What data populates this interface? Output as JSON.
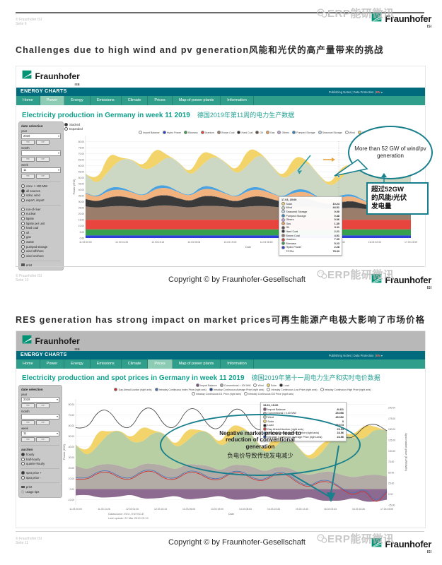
{
  "page": {
    "watermark": "ERP能研微讯",
    "logo_name": "Fraunhofer",
    "logo_isi": "ISI",
    "logo_ise": "ISE",
    "copyright": "Copyright © by Fraunhofer-Gesellschaft",
    "meta_owner": "© Fraunhofer ISI",
    "pages": [
      "Seite 9",
      "Seite 10",
      "Seite 11"
    ]
  },
  "slide1": {
    "title_en": "Challenges due to high wind and pv generation",
    "title_zh": "风能和光伏的高产量带来的挑战",
    "callout_bubble": "More than 52 GW of wind/pv generation",
    "callout_box": [
      "超过52GW",
      "的风能/光伏",
      "发电量"
    ]
  },
  "slide2": {
    "title_en": "RES generation has strong impact on market prices",
    "title_zh": "可再生能源产电极大影响了市场价格",
    "callout_en": [
      "Negative market prices lead to",
      "reduction of conventional",
      "generation"
    ],
    "callout_zh": "负电价导致传统发电减少"
  },
  "app": {
    "brand": "ENERGY CHARTS",
    "links": "Publishing Notes | Data Protection |",
    "lang": "EN",
    "caret": "▾",
    "nav1": [
      {
        "label": "Home",
        "cls": ""
      },
      {
        "label": "Power",
        "cls": "active"
      },
      {
        "label": "Energy",
        "cls": ""
      },
      {
        "label": "Emissions",
        "cls": ""
      },
      {
        "label": "Climate",
        "cls": ""
      },
      {
        "label": "Prices",
        "cls": ""
      },
      {
        "label": "Map of power plants",
        "cls": ""
      },
      {
        "label": "Information",
        "cls": ""
      }
    ],
    "nav2": [
      {
        "label": "Home",
        "cls": ""
      },
      {
        "label": "Power",
        "cls": ""
      },
      {
        "label": "Energy",
        "cls": ""
      },
      {
        "label": "Emissions",
        "cls": ""
      },
      {
        "label": "Climate",
        "cls": ""
      },
      {
        "label": "Prices",
        "cls": "active"
      },
      {
        "label": "Map of power plants",
        "cls": ""
      },
      {
        "label": "Information",
        "cls": ""
      }
    ],
    "heading1_en": "Electricity production in Germany in week 11 2019",
    "heading1_zh": "德国2019年第11周的电力生产数据",
    "heading2_en": "Electricity production and spot prices in Germany in week 11 2019",
    "heading2_zh": "德国2019年第十一周电力生产和实时电价数据",
    "stacked": "Stacked",
    "expanded": "Expanded",
    "sidebar1": {
      "title": "date selection",
      "year_label": "year",
      "year": "2019",
      "month_label": "month",
      "month": "",
      "week_label": "week",
      "week": "11",
      "prev": "<<",
      "next": ">>",
      "modes": [
        {
          "label": "conv. > 100 MW",
          "cls": ""
        },
        {
          "label": "all sources",
          "cls": "on"
        },
        {
          "label": "solar, wind",
          "cls": ""
        },
        {
          "label": "export, import",
          "cls": ""
        }
      ],
      "sources": [
        {
          "label": "run-of-river",
          "cls": ""
        },
        {
          "label": "nuclear",
          "cls": ""
        },
        {
          "label": "lignite",
          "cls": ""
        },
        {
          "label": "lignite per unit",
          "cls": ""
        },
        {
          "label": "hard coal",
          "cls": ""
        },
        {
          "label": "oil",
          "cls": ""
        },
        {
          "label": "gas",
          "cls": ""
        },
        {
          "label": "waste",
          "cls": ""
        },
        {
          "label": "pumped storage",
          "cls": ""
        },
        {
          "label": "wind offshore",
          "cls": ""
        },
        {
          "label": "wind onshore",
          "cls": ""
        }
      ],
      "print": "print"
    },
    "sidebar2": {
      "title": "date selection",
      "year_label": "year",
      "year": "2019",
      "month_label": "month",
      "month": "",
      "week_label": "week",
      "week": "11",
      "prev": "<<",
      "next": ">>",
      "auction_label": "auction",
      "auction": [
        {
          "label": "hourly",
          "cls": "on"
        },
        {
          "label": "half-hourly",
          "cls": ""
        },
        {
          "label": "quarter-hourly",
          "cls": ""
        }
      ],
      "spot": [
        {
          "label": "spot price +",
          "cls": "on"
        },
        {
          "label": "spot price -",
          "cls": ""
        }
      ],
      "print": "print",
      "tips": "usage tips"
    },
    "tooltip1": {
      "time": "17.03, 15:00",
      "rows": [
        {
          "label": "Solar",
          "value": "10.24",
          "color": "#f3d46a"
        },
        {
          "label": "Wind",
          "value": "44.51",
          "color": "#cdd9c6"
        },
        {
          "label": "Seasonal Storage",
          "value": "0.00",
          "color": "#bcd9ef"
        },
        {
          "label": "Pumped Storage",
          "value": "0.48",
          "color": "#2d86c9"
        },
        {
          "label": "Others",
          "value": "0.06",
          "color": "#c5a3d8"
        },
        {
          "label": "Gas",
          "value": "1.35",
          "color": "#ef9f4e"
        },
        {
          "label": "Oil",
          "value": "0.11",
          "color": "#5d4a41"
        },
        {
          "label": "Hard Coal",
          "value": "2.21",
          "color": "#2e2e2e"
        },
        {
          "label": "Brown Coal",
          "value": "4.51",
          "color": "#9b7d6b"
        },
        {
          "label": "Uranium",
          "value": "7.35",
          "color": "#dd3b35"
        },
        {
          "label": "Biomass",
          "value": "5.23",
          "color": "#35a14e"
        },
        {
          "label": "Hydro Power",
          "value": "2.28",
          "color": "#2b3ed6"
        },
        {
          "label": "TOTAL",
          "value": "78.33",
          "color": ""
        }
      ]
    },
    "tooltip2": {
      "time": "15.03, 15:00",
      "rows": [
        {
          "label": "Import Balance",
          "value": "-8.411",
          "color": "#7b4f7d"
        },
        {
          "label": "Conventional > 100 MW",
          "value": "25.056",
          "color": "#a9a9a9"
        },
        {
          "label": "Wind",
          "value": "45.052",
          "color": "#b8cfa9"
        },
        {
          "label": "Solar",
          "value": "0",
          "color": "#f3d46a"
        },
        {
          "label": "Load",
          "value": "25.673",
          "color": "#1d1d1d"
        },
        {
          "label": "Day Ahead Auction (right axis)",
          "value": "23.54",
          "color": "#cf2e2e"
        },
        {
          "label": "Intraday Continuous Index Price (right axis)",
          "value": "24.56",
          "color": "#4a6fb5"
        },
        {
          "label": "Intraday Continuous Average Price (right axis)",
          "value": "24.56",
          "color": "#173f8f"
        }
      ]
    },
    "datasource": "Datasource: EEX, ENTSO-E",
    "last_update": "Last update: 22 Mar 2019 22:19"
  },
  "chart_data": [
    {
      "type": "area",
      "stacked": true,
      "title": "Electricity production in Germany in week 11 2019",
      "xlabel": "Date",
      "ylabel": "Power (GW)",
      "ylim": [
        0,
        85
      ],
      "yticks": [
        0,
        5,
        10,
        15,
        20,
        25,
        30,
        35,
        40,
        45,
        50,
        55,
        60,
        65,
        70,
        75,
        80
      ],
      "xticks": [
        "11.03 00:00",
        "12.03 01:26",
        "12.03 15:13",
        "13.03 05:06",
        "13.03 19:00",
        "14.03 08:53",
        "14.03 22:46",
        "15.03 12:40",
        "16.03 02:33",
        "17.03 23:59"
      ],
      "grid": true,
      "legend_position": "top",
      "series": [
        {
          "name": "Hydro Power",
          "color": "#2b3ed6",
          "values": 2.2
        },
        {
          "name": "Biomass",
          "color": "#35a14e",
          "values": 5
        },
        {
          "name": "Uranium",
          "color": "#e8453e",
          "values": 8
        },
        {
          "name": "Brown Coal",
          "color": "#9b7d6b",
          "values": [
            11,
            10,
            11,
            11.5,
            11,
            10,
            11.5,
            12,
            11,
            10,
            11.5,
            11.5,
            11,
            10,
            11,
            11.5,
            11,
            10,
            10.5,
            11,
            10,
            9,
            9.5,
            10,
            9,
            8,
            8.5,
            9,
            8
          ]
        },
        {
          "name": "Hard Coal",
          "color": "#3a3a3a",
          "values": [
            6,
            4.5,
            7.5,
            8,
            6.5,
            5,
            8,
            8.5,
            6.5,
            5,
            8,
            8,
            6,
            4.5,
            7.5,
            8,
            6,
            4.5,
            7,
            7,
            4.5,
            3.5,
            5,
            5.5,
            3.5,
            2.5,
            3.5,
            4,
            3
          ]
        },
        {
          "name": "Oil",
          "color": "#5d4a41",
          "values": 0.3
        },
        {
          "name": "Gas",
          "color": "#f2b27e",
          "values": [
            4.5,
            3.5,
            5.5,
            5.5,
            5,
            4,
            6,
            6,
            5,
            4,
            6,
            5.5,
            4.5,
            3.5,
            5.5,
            5.5,
            4.5,
            3.5,
            5,
            5,
            3.5,
            2.5,
            4,
            4,
            2.5,
            1.5,
            2.5,
            3,
            1.5
          ]
        },
        {
          "name": "Pumped Storage",
          "color": "#4aa3e0",
          "values": [
            0.5,
            0.3,
            2.5,
            2,
            0.5,
            0.3,
            2.5,
            2,
            0.5,
            0.3,
            2.5,
            2,
            0.5,
            0.3,
            2.5,
            2,
            0.5,
            0.3,
            2.5,
            2,
            0.5,
            0.3,
            2,
            1.5,
            0.5,
            0.3,
            2,
            1.5,
            0.5
          ]
        },
        {
          "name": "Wind",
          "color": "#ccd8c4",
          "values": [
            16,
            10,
            14,
            23,
            27,
            21,
            16,
            24,
            25,
            16,
            17,
            26,
            26,
            18,
            19,
            28,
            23,
            14,
            15,
            24,
            19,
            11,
            13,
            24,
            31,
            29,
            27,
            35,
            34
          ]
        },
        {
          "name": "Solar",
          "color": "#f3d46a",
          "values": [
            0,
            2,
            15,
            1,
            0,
            3,
            16,
            1,
            0,
            2,
            12,
            1,
            0,
            3,
            14,
            1,
            0,
            2,
            13,
            1,
            0,
            2,
            10,
            1,
            0,
            3,
            14,
            1,
            0
          ]
        }
      ],
      "legend": [
        {
          "label": "Import Balance",
          "color": "#ffffff"
        },
        {
          "label": "Hydro Power",
          "color": "#2b3ed6"
        },
        {
          "label": "Biomass",
          "color": "#35a14e"
        },
        {
          "label": "Uranium",
          "color": "#e8453e"
        },
        {
          "label": "Brown Coal",
          "color": "#9b7d6b"
        },
        {
          "label": "Hard Coal",
          "color": "#2e2e2e"
        },
        {
          "label": "Oil",
          "color": "#5d4a41"
        },
        {
          "label": "Gas",
          "color": "#ef9f4e"
        },
        {
          "label": "Others",
          "color": "#c5a3d8"
        },
        {
          "label": "Pumped Storage",
          "color": "#2d86c9"
        },
        {
          "label": "Seasonal Storage",
          "color": "#bcd9ef"
        },
        {
          "label": "Wind",
          "color": "#ffffff"
        },
        {
          "label": "Solar",
          "color": "#f3d46a"
        }
      ]
    },
    {
      "type": "area",
      "stacked": true,
      "title": "Electricity production and spot prices in Germany in week 11 2019",
      "xlabel": "Date",
      "ylabel": "Power (GW)",
      "y2label": "Spot market price (EUR/MWh)",
      "ylim": [
        -15,
        85
      ],
      "y2lim": [
        -25,
        220
      ],
      "yticks": [
        -10,
        0,
        10,
        20,
        30,
        40,
        50,
        60,
        70,
        80
      ],
      "y2ticks": [
        -25,
        0,
        25,
        50,
        75,
        100,
        125,
        150,
        175,
        200
      ],
      "xticks": [
        "11.03 00:00",
        "11.03 11:26",
        "12.03 01:20",
        "12.03 15:13",
        "13.03 05:06",
        "13.03 19:00",
        "14.03 08:53",
        "14.03 22:46",
        "15.03 12:40",
        "16.03 02:33",
        "16.03 16:26",
        "17.03 23:59"
      ],
      "grid": true,
      "legend_position": "top",
      "series": [
        {
          "name": "Import Balance",
          "color": "#8d6b90",
          "neg": true,
          "values": [
            -6,
            -5,
            -8,
            -8,
            -7,
            -5,
            -9,
            -9,
            -8,
            -6,
            -10,
            -9,
            -8,
            -6,
            -10,
            -10,
            -9,
            -6,
            -10,
            -10,
            -10,
            -7,
            -11,
            -11,
            -11,
            -8,
            -12,
            -12,
            -10
          ]
        },
        {
          "name": "Conventional > 100 MW",
          "color": "#b3aca6",
          "values": [
            22,
            18,
            23,
            24,
            22,
            18,
            24,
            24,
            22,
            18,
            24,
            23,
            22,
            17,
            23,
            23,
            21,
            16,
            21,
            21,
            16,
            13,
            16,
            17,
            13,
            11,
            13,
            14,
            12
          ]
        },
        {
          "name": "Wind",
          "color": "#b8cfa4",
          "values": [
            20,
            12,
            18,
            29,
            34,
            26,
            20,
            30,
            31,
            20,
            21,
            32,
            32,
            22,
            24,
            35,
            29,
            17,
            19,
            30,
            24,
            14,
            16,
            30,
            40,
            37,
            34,
            44,
            43
          ]
        },
        {
          "name": "Solar",
          "color": "#f3d46a",
          "values": [
            0,
            2,
            15,
            1,
            0,
            3,
            16,
            1,
            0,
            2,
            12,
            1,
            0,
            3,
            14,
            1,
            0,
            2,
            13,
            1,
            0,
            2,
            10,
            1,
            0,
            3,
            14,
            1,
            0
          ]
        }
      ],
      "lines": [
        {
          "name": "Load",
          "color": "#3c3c3c",
          "axis": "left",
          "values": [
            58,
            56,
            74,
            75,
            59,
            57,
            76,
            77,
            59,
            57,
            76,
            76,
            58,
            56,
            75,
            76,
            57,
            55,
            73,
            73,
            52,
            50,
            63,
            64,
            49,
            48,
            60,
            62,
            55
          ]
        },
        {
          "name": "Day Ahead Auction",
          "color": "#cf2e2e",
          "axis": "right",
          "values": [
            35,
            32,
            50,
            52,
            36,
            33,
            52,
            54,
            35,
            33,
            51,
            50,
            34,
            32,
            50,
            50,
            33,
            30,
            48,
            46,
            25,
            15,
            30,
            28,
            10,
            -4,
            12,
            -25,
            5
          ]
        },
        {
          "name": "Intraday Continuous Index Price",
          "color": "#4a6fb5",
          "axis": "right",
          "values": [
            38,
            35,
            53,
            55,
            39,
            36,
            55,
            57,
            38,
            36,
            54,
            53,
            37,
            35,
            53,
            53,
            36,
            33,
            51,
            49,
            28,
            18,
            33,
            31,
            12,
            0,
            15,
            -20,
            8
          ]
        }
      ],
      "legend_rows": [
        [
          {
            "label": "Import Balance",
            "color": "#7b4f7d"
          },
          {
            "label": "Conventional > 100 MW",
            "color": "#a9a9a9"
          },
          {
            "label": "Wind",
            "color": "#ffffff"
          },
          {
            "label": "Solar",
            "color": "#f3d46a"
          },
          {
            "label": "Load",
            "color": "#1d1d1d"
          }
        ],
        [
          {
            "label": "Day Ahead Auction (right axis)",
            "color": "#cf2e2e"
          },
          {
            "label": "Intraday Continuous Index Price (right axis)",
            "color": "#4a6fb5"
          },
          {
            "label": "Intraday Continuous Average Price (right axis)",
            "color": "#173f8f"
          },
          {
            "label": "Intraday Continuous Low Price (right axis)",
            "color": "#ffffff"
          },
          {
            "label": "Intraday Continuous High Price (right axis)",
            "color": "#ffffff"
          }
        ],
        [
          {
            "label": "Intraday Continuous ID1 Price (right axis)",
            "color": "#ffffff"
          },
          {
            "label": "Intraday Continuous ID3 Price (right axis)",
            "color": "#ffffff"
          }
        ]
      ]
    }
  ]
}
